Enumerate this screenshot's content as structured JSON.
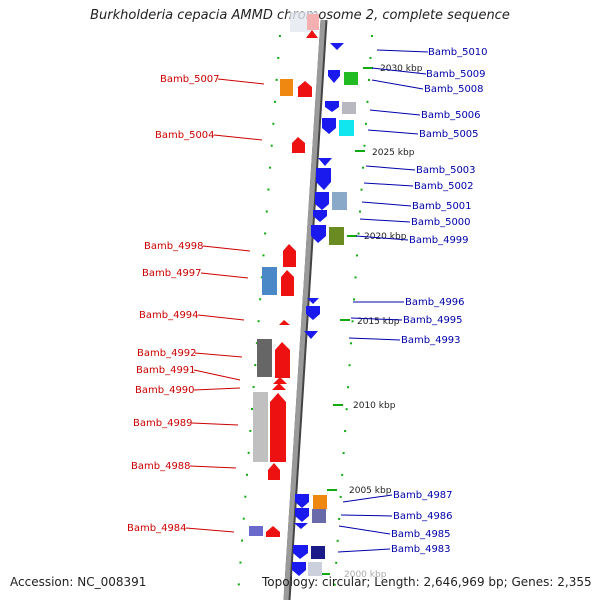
{
  "title": "Burkholderia cepacia AMMD chromosome 2, complete sequence",
  "footer": {
    "accession": "Accession: NC_008391",
    "topology": "Topology: circular; Length: 2,646,969 bp; Genes: 2,355"
  },
  "ruler_labels": [
    "2030 kbp",
    "2025 kbp",
    "2020 kbp",
    "2015 kbp",
    "2010 kbp",
    "2005 kbp",
    "2000 kbp"
  ],
  "left_labels": [
    "Bamb_5007",
    "Bamb_5004",
    "Bamb_4998",
    "Bamb_4997",
    "Bamb_4994",
    "Bamb_4992",
    "Bamb_4991",
    "Bamb_4990",
    "Bamb_4989",
    "Bamb_4988",
    "Bamb_4984"
  ],
  "right_labels": [
    "Bamb_5010",
    "Bamb_5009",
    "Bamb_5008",
    "Bamb_5006",
    "Bamb_5005",
    "Bamb_5003",
    "Bamb_5002",
    "Bamb_5001",
    "Bamb_5000",
    "Bamb_4999",
    "Bamb_4996",
    "Bamb_4995",
    "Bamb_4993",
    "Bamb_4987",
    "Bamb_4986",
    "Bamb_4985",
    "Bamb_4983"
  ],
  "colors": {
    "left_label": "#cc0000",
    "right_label": "#0000aa",
    "ruler_dash": "#11aa11",
    "backbone": "#888888"
  }
}
